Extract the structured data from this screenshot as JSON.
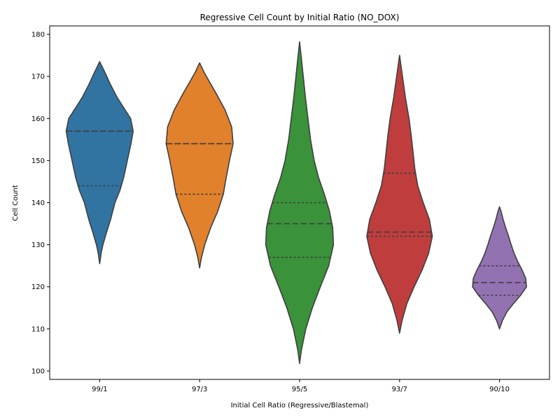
{
  "chart_data": {
    "type": "violin",
    "title": "Regressive Cell Count by Initial Ratio (NO_DOX)",
    "xlabel": "Initial Cell Ratio (Regressive/Blastemal)",
    "ylabel": "Cell Count",
    "ylim": [
      98,
      182
    ],
    "yticks": [
      100,
      110,
      120,
      130,
      140,
      150,
      160,
      170,
      180
    ],
    "grid": false,
    "inner": "quartile",
    "categories": [
      "99/1",
      "97/3",
      "95/5",
      "93/7",
      "90/10"
    ],
    "colors": [
      "#3274a1",
      "#e1812c",
      "#3a923a",
      "#c03d3e",
      "#9372b2"
    ],
    "violins": [
      {
        "category": "99/1",
        "min": 125.5,
        "max": 173.5,
        "q1": 144,
        "median": 157,
        "q3": 157,
        "profile": [
          [
            125.5,
            0.0
          ],
          [
            128,
            0.04
          ],
          [
            130,
            0.09
          ],
          [
            133,
            0.19
          ],
          [
            136,
            0.3
          ],
          [
            140,
            0.42
          ],
          [
            143,
            0.56
          ],
          [
            146,
            0.66
          ],
          [
            150,
            0.76
          ],
          [
            154,
            0.86
          ],
          [
            157,
            0.92
          ],
          [
            160,
            0.85
          ],
          [
            162,
            0.7
          ],
          [
            165,
            0.48
          ],
          [
            168,
            0.3
          ],
          [
            171,
            0.14
          ],
          [
            173.5,
            0.0
          ]
        ]
      },
      {
        "category": "97/3",
        "min": 124.5,
        "max": 173.2,
        "q1": 142,
        "median": 154,
        "q3": 154,
        "profile": [
          [
            124.5,
            0.0
          ],
          [
            127,
            0.05
          ],
          [
            130,
            0.14
          ],
          [
            134,
            0.3
          ],
          [
            138,
            0.5
          ],
          [
            142,
            0.65
          ],
          [
            146,
            0.73
          ],
          [
            150,
            0.82
          ],
          [
            154,
            0.92
          ],
          [
            158,
            0.88
          ],
          [
            162,
            0.7
          ],
          [
            166,
            0.45
          ],
          [
            169,
            0.25
          ],
          [
            171,
            0.12
          ],
          [
            173.2,
            0.0
          ]
        ]
      },
      {
        "category": "95/5",
        "min": 101.8,
        "max": 178.2,
        "q1": 127,
        "median": 135,
        "q3": 140,
        "profile": [
          [
            101.8,
            0.0
          ],
          [
            105,
            0.05
          ],
          [
            110,
            0.17
          ],
          [
            115,
            0.35
          ],
          [
            120,
            0.57
          ],
          [
            125,
            0.8
          ],
          [
            130,
            0.93
          ],
          [
            134,
            0.91
          ],
          [
            138,
            0.82
          ],
          [
            142,
            0.68
          ],
          [
            146,
            0.52
          ],
          [
            150,
            0.4
          ],
          [
            155,
            0.3
          ],
          [
            160,
            0.23
          ],
          [
            165,
            0.16
          ],
          [
            170,
            0.1
          ],
          [
            175,
            0.04
          ],
          [
            178.2,
            0.0
          ]
        ]
      },
      {
        "category": "93/7",
        "min": 109,
        "max": 175,
        "q1": 132,
        "median": 133,
        "q3": 147,
        "profile": [
          [
            109,
            0.0
          ],
          [
            112,
            0.07
          ],
          [
            116,
            0.2
          ],
          [
            120,
            0.4
          ],
          [
            124,
            0.62
          ],
          [
            128,
            0.8
          ],
          [
            132,
            0.9
          ],
          [
            136,
            0.82
          ],
          [
            140,
            0.65
          ],
          [
            144,
            0.5
          ],
          [
            148,
            0.42
          ],
          [
            152,
            0.37
          ],
          [
            156,
            0.32
          ],
          [
            160,
            0.26
          ],
          [
            165,
            0.16
          ],
          [
            170,
            0.08
          ],
          [
            175,
            0.0
          ]
        ]
      },
      {
        "category": "90/10",
        "min": 110,
        "max": 139,
        "q1": 118,
        "median": 121,
        "q3": 125,
        "profile": [
          [
            110,
            0.0
          ],
          [
            112,
            0.08
          ],
          [
            114,
            0.2
          ],
          [
            116,
            0.38
          ],
          [
            118,
            0.58
          ],
          [
            120,
            0.74
          ],
          [
            122,
            0.72
          ],
          [
            124,
            0.62
          ],
          [
            126,
            0.5
          ],
          [
            128,
            0.4
          ],
          [
            130,
            0.32
          ],
          [
            132,
            0.25
          ],
          [
            134,
            0.17
          ],
          [
            136,
            0.1
          ],
          [
            138,
            0.04
          ],
          [
            139,
            0.0
          ]
        ]
      }
    ]
  }
}
